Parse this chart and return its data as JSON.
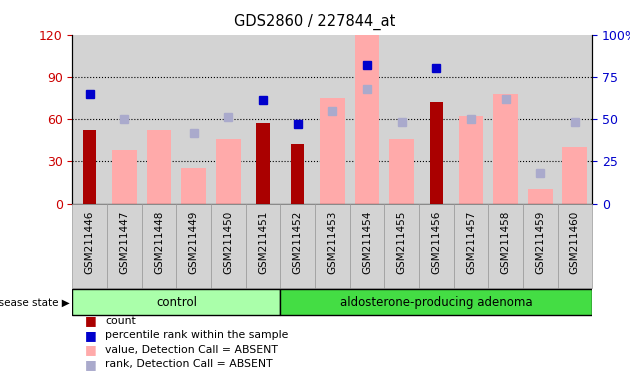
{
  "title": "GDS2860 / 227844_at",
  "samples": [
    "GSM211446",
    "GSM211447",
    "GSM211448",
    "GSM211449",
    "GSM211450",
    "GSM211451",
    "GSM211452",
    "GSM211453",
    "GSM211454",
    "GSM211455",
    "GSM211456",
    "GSM211457",
    "GSM211458",
    "GSM211459",
    "GSM211460"
  ],
  "n_control": 6,
  "n_adenoma": 9,
  "count": [
    52,
    0,
    0,
    0,
    0,
    57,
    42,
    0,
    0,
    0,
    72,
    0,
    0,
    0,
    0
  ],
  "percentile_rank": [
    65,
    0,
    0,
    0,
    0,
    61,
    47,
    0,
    82,
    0,
    80,
    0,
    0,
    0,
    0
  ],
  "value_absent": [
    0,
    38,
    52,
    25,
    46,
    0,
    0,
    75,
    120,
    46,
    0,
    62,
    78,
    10,
    40
  ],
  "rank_absent": [
    0,
    50,
    0,
    42,
    51,
    0,
    0,
    55,
    68,
    48,
    0,
    50,
    62,
    18,
    48
  ],
  "left_ylim": [
    0,
    120
  ],
  "left_yticks": [
    0,
    30,
    60,
    90,
    120
  ],
  "right_ylim": [
    0,
    100
  ],
  "right_yticks": [
    0,
    25,
    50,
    75,
    100
  ],
  "left_color": "#cc0000",
  "right_color": "#0000cc",
  "bar_count_color": "#aa0000",
  "bar_value_absent_color": "#ffaaaa",
  "marker_rank_color": "#0000cc",
  "marker_rank_absent_color": "#aaaacc",
  "plot_bg_color": "#d3d3d3",
  "control_group_color": "#aaffaa",
  "adenoma_group_color": "#44dd44",
  "grid_color": "black",
  "legend_items": [
    {
      "color": "#aa0000",
      "label": "count"
    },
    {
      "color": "#0000cc",
      "label": "percentile rank within the sample"
    },
    {
      "color": "#ffaaaa",
      "label": "value, Detection Call = ABSENT"
    },
    {
      "color": "#aaaacc",
      "label": "rank, Detection Call = ABSENT"
    }
  ]
}
